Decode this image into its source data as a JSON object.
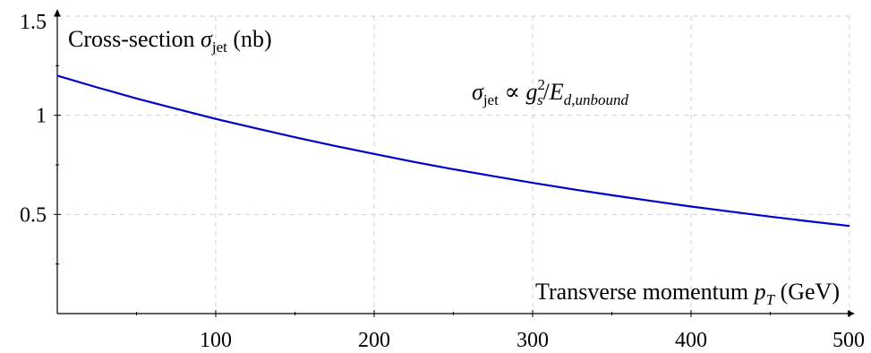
{
  "chart_data": {
    "type": "line",
    "title": "",
    "xlabel": {
      "text": "Transverse momentum ",
      "symbol": "p",
      "symbol_sub": "T",
      "unit": " (GeV)"
    },
    "ylabel": {
      "text": "Cross-section ",
      "symbol": "σ",
      "symbol_sub": "jet",
      "unit": " (nb)"
    },
    "xlim": [
      0,
      500
    ],
    "ylim": [
      0,
      1.5
    ],
    "x_ticks": [
      100,
      200,
      300,
      400,
      500
    ],
    "x_tick_labels": [
      "100",
      "200",
      "300",
      "400",
      "500"
    ],
    "x_minor_ticks": [
      50,
      150,
      250,
      350,
      450
    ],
    "y_ticks": [
      0.5,
      1,
      1.5
    ],
    "y_tick_labels": [
      "0.5",
      "1",
      "1.5"
    ],
    "y_minor_ticks": [
      0.25,
      0.75,
      1.25
    ],
    "grid": true,
    "grid_style": "dashed",
    "series": [
      {
        "color": "#0000cc",
        "x": [
          0,
          25,
          50,
          75,
          100,
          125,
          150,
          175,
          200,
          225,
          250,
          275,
          300,
          325,
          350,
          375,
          400,
          425,
          450,
          475,
          500
        ],
        "y": [
          1.2,
          1.141,
          1.085,
          1.033,
          0.982,
          0.935,
          0.889,
          0.846,
          0.805,
          0.765,
          0.728,
          0.693,
          0.659,
          0.627,
          0.597,
          0.568,
          0.54,
          0.514,
          0.489,
          0.465,
          0.442
        ]
      }
    ],
    "annotation": {
      "sigma": "σ",
      "sigma_sub": "jet",
      "relation": " ∝ ",
      "g": "g",
      "g_sub": "s",
      "g_sup": "2",
      "slash": "/",
      "E": "E",
      "E_sub": "d,unbound"
    }
  }
}
